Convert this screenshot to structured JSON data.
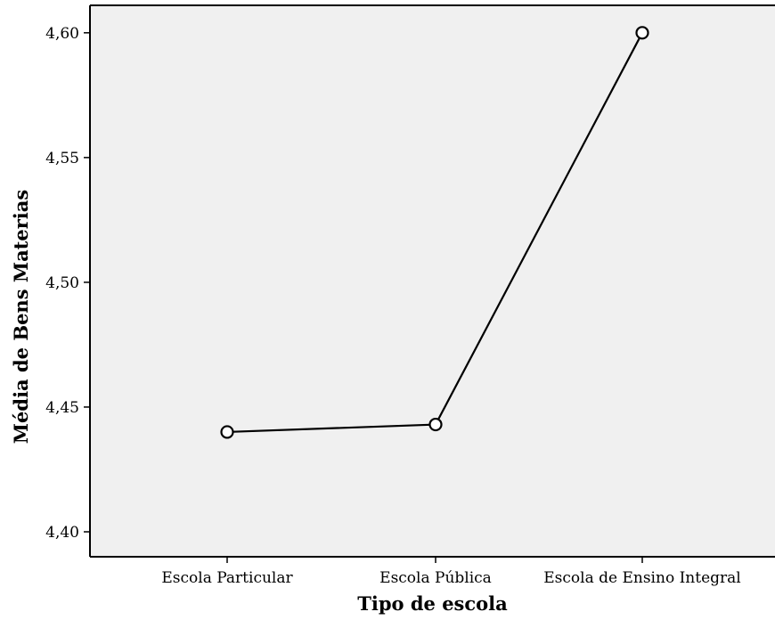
{
  "chart_data": {
    "type": "line",
    "title": "",
    "xlabel": "Tipo de escola",
    "ylabel": "Média de Bens Materias",
    "categories": [
      "Escola Particular",
      "Escola Pública",
      "Escola de Ensino Integral"
    ],
    "series": [
      {
        "values": [
          4.44,
          4.443,
          4.6
        ]
      }
    ],
    "ylim": [
      4.39,
      4.611
    ],
    "yticks": [
      4.4,
      4.45,
      4.5,
      4.55,
      4.6
    ],
    "ytick_labels": [
      "4,40",
      "4,45",
      "4,50",
      "4,55",
      "4,60"
    ],
    "grid": false,
    "legend": "none",
    "colors": {
      "plot_background": "#f0f0f0",
      "line": "#000000",
      "marker_fill": "#ffffff"
    },
    "marker": "open-circle"
  }
}
